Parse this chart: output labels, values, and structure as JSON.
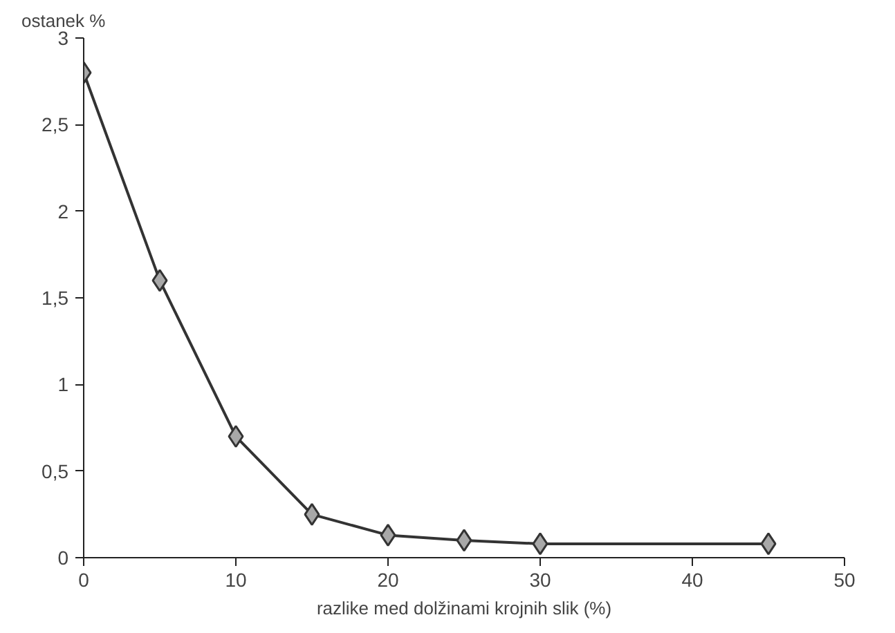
{
  "chart_data": {
    "type": "line",
    "xlabel": "razlike med dolžinami krojnih slik (%)",
    "ylabel": "ostanek %",
    "x": [
      0,
      5,
      10,
      15,
      20,
      25,
      30,
      45
    ],
    "series": [
      {
        "color": "#333333",
        "values": [
          2.8,
          1.6,
          0.7,
          0.25,
          0.13,
          0.1,
          0.08,
          0.08
        ]
      }
    ],
    "xlim": [
      0,
      50
    ],
    "xticks": [
      0,
      10,
      20,
      30,
      40,
      50
    ],
    "ylim": [
      0,
      3
    ],
    "yticks": [
      0,
      {
        "value": 0.5,
        "label": "0,5"
      },
      1,
      {
        "value": 1.5,
        "label": "1,5"
      },
      2,
      {
        "value": 2.5,
        "label": "2,5"
      },
      3
    ],
    "grid": false,
    "marker": "diamond",
    "line_style": "solid"
  }
}
